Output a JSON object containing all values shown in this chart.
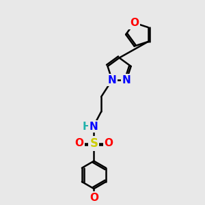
{
  "bg_color": "#e8e8e8",
  "bond_color": "#000000",
  "bond_width": 1.8,
  "atom_colors": {
    "O": "#ff0000",
    "N": "#0000ff",
    "S": "#cccc00",
    "H": "#20b2aa",
    "C": "#000000"
  },
  "font_size_atom": 11,
  "figsize": [
    3.0,
    3.0
  ],
  "dpi": 100
}
